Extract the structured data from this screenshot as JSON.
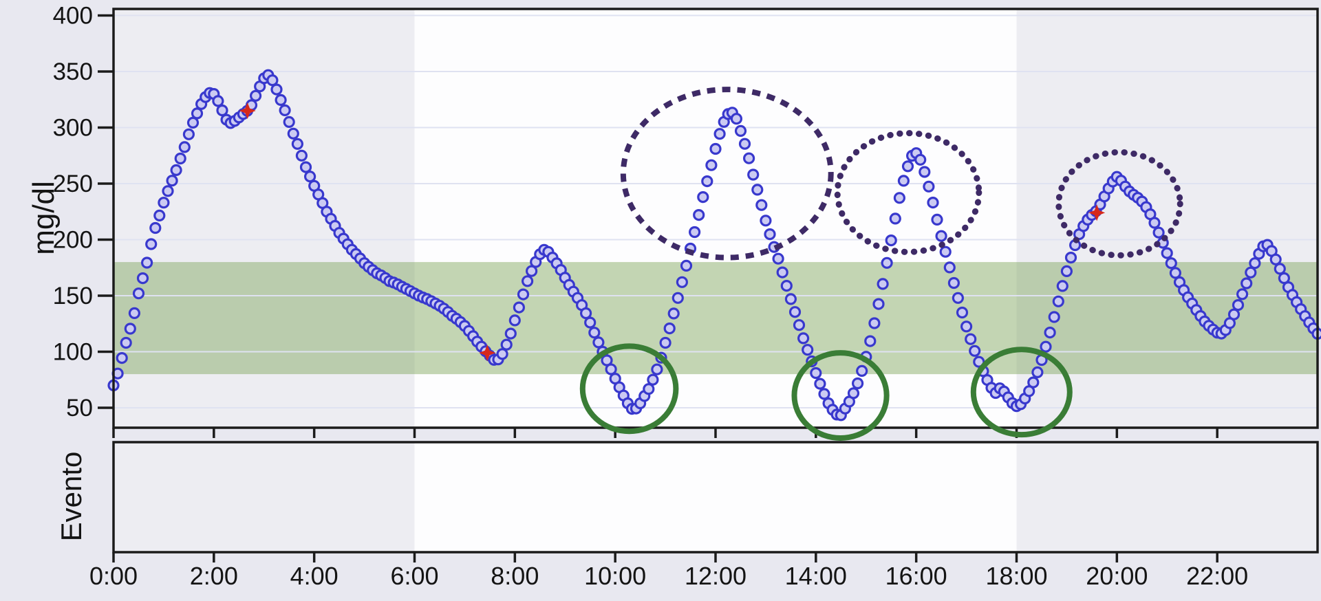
{
  "page": {
    "background_color": "#e8e8f0",
    "description_text": ""
  },
  "chart": {
    "y_axis": {
      "title": "mg/dl",
      "tick_labels": [
        "400",
        "350",
        "300",
        "250",
        "200",
        "150",
        "100",
        "50"
      ],
      "tick_values": [
        400,
        350,
        300,
        250,
        200,
        150,
        100,
        50
      ]
    },
    "x_axis": {
      "tick_labels": [
        "0:00",
        "2:00",
        "4:00",
        "6:00",
        "8:00",
        "10:00",
        "12:00",
        "14:00",
        "16:00",
        "18:00",
        "20:00",
        "22:00"
      ],
      "tick_hours": [
        0,
        2,
        4,
        6,
        8,
        10,
        12,
        14,
        16,
        18,
        20,
        22
      ],
      "hour_min": 0,
      "hour_max": 24
    },
    "event_panel": {
      "title": "Evento",
      "content": ""
    },
    "target_band": {
      "low_mgdl": 80,
      "high_mgdl": 180
    },
    "shaded_periods_hours": [
      [
        0,
        6
      ],
      [
        18,
        24
      ]
    ],
    "colors": {
      "margin_bg": "#e8e8f0",
      "plot_bg_day": "#fdfdfe",
      "plot_bg_night": "#ededf2",
      "gridline": "#dfe2f1",
      "border": "#1b1b1b",
      "tick": "#1b1b1b",
      "label_text": "#141414",
      "target_band": "rgba(124,163,88,0.45)",
      "dot_fill": "#cbcaf2",
      "dot_stroke": "#3838cd",
      "calibration_marker": "#d6281a",
      "hyper_annotation": "#3e2a66",
      "hypo_annotation": "#3a7d36"
    }
  },
  "chart_data": {
    "type": "scatter",
    "title": "",
    "ylabel": "mg/dl",
    "xlabel": "",
    "ylim": [
      32,
      405
    ],
    "xlim_hours": [
      0,
      24
    ],
    "grid": "horizontal",
    "legend": "none",
    "series": [
      {
        "name": "sensor-glucose",
        "marker": "circle",
        "sample_interval_min": 5,
        "keypoints_hour_mgdl": [
          [
            0,
            70
          ],
          [
            0.08,
            80
          ],
          [
            0.17,
            95
          ],
          [
            0.25,
            108
          ],
          [
            0.33,
            120
          ],
          [
            0.42,
            135
          ],
          [
            0.5,
            152
          ],
          [
            0.58,
            165
          ],
          [
            0.67,
            180
          ],
          [
            0.75,
            196
          ],
          [
            0.83,
            210
          ],
          [
            0.92,
            222
          ],
          [
            1,
            233
          ],
          [
            1.08,
            243
          ],
          [
            1.17,
            253
          ],
          [
            1.25,
            262
          ],
          [
            1.33,
            272
          ],
          [
            1.42,
            283
          ],
          [
            1.5,
            294
          ],
          [
            1.58,
            304
          ],
          [
            1.67,
            313
          ],
          [
            1.75,
            321
          ],
          [
            1.83,
            327
          ],
          [
            1.92,
            331
          ],
          [
            2,
            330
          ],
          [
            2.08,
            324
          ],
          [
            2.17,
            315
          ],
          [
            2.25,
            307
          ],
          [
            2.33,
            304
          ],
          [
            2.42,
            306
          ],
          [
            2.5,
            309
          ],
          [
            2.58,
            312
          ],
          [
            2.67,
            315
          ],
          [
            2.75,
            320
          ],
          [
            2.83,
            328
          ],
          [
            2.92,
            337
          ],
          [
            3,
            344
          ],
          [
            3.08,
            347
          ],
          [
            3.17,
            342
          ],
          [
            3.25,
            334
          ],
          [
            3.33,
            325
          ],
          [
            3.42,
            315
          ],
          [
            3.5,
            305
          ],
          [
            3.58,
            295
          ],
          [
            3.67,
            285
          ],
          [
            3.75,
            275
          ],
          [
            3.83,
            265
          ],
          [
            3.92,
            256
          ],
          [
            4,
            248
          ],
          [
            4.13,
            236
          ],
          [
            4.25,
            225
          ],
          [
            4.38,
            215
          ],
          [
            4.5,
            206
          ],
          [
            4.63,
            198
          ],
          [
            4.75,
            191
          ],
          [
            4.88,
            185
          ],
          [
            5,
            179
          ],
          [
            5.13,
            174
          ],
          [
            5.25,
            170
          ],
          [
            5.38,
            167
          ],
          [
            5.5,
            163
          ],
          [
            5.63,
            161
          ],
          [
            5.75,
            158
          ],
          [
            5.88,
            155
          ],
          [
            6,
            152
          ],
          [
            6.13,
            149
          ],
          [
            6.25,
            147
          ],
          [
            6.38,
            144
          ],
          [
            6.5,
            141
          ],
          [
            6.63,
            137
          ],
          [
            6.75,
            132
          ],
          [
            6.88,
            128
          ],
          [
            7,
            123
          ],
          [
            7.13,
            116
          ],
          [
            7.25,
            109
          ],
          [
            7.38,
            102
          ],
          [
            7.45,
            99
          ],
          [
            7.55,
            94
          ],
          [
            7.63,
            91
          ],
          [
            7.75,
            98
          ],
          [
            7.88,
            111
          ],
          [
            8,
            128
          ],
          [
            8.13,
            146
          ],
          [
            8.25,
            163
          ],
          [
            8.38,
            177
          ],
          [
            8.5,
            187
          ],
          [
            8.58,
            191
          ],
          [
            8.67,
            189
          ],
          [
            8.75,
            184
          ],
          [
            8.88,
            176
          ],
          [
            9,
            166
          ],
          [
            9.13,
            156
          ],
          [
            9.25,
            148
          ],
          [
            9.38,
            138
          ],
          [
            9.5,
            126
          ],
          [
            9.63,
            112
          ],
          [
            9.75,
            100
          ],
          [
            9.88,
            88
          ],
          [
            10,
            76
          ],
          [
            10.13,
            64
          ],
          [
            10.25,
            54
          ],
          [
            10.35,
            48
          ],
          [
            10.45,
            50
          ],
          [
            10.55,
            58
          ],
          [
            10.67,
            67
          ],
          [
            10.78,
            78
          ],
          [
            10.9,
            92
          ],
          [
            11,
            108
          ],
          [
            11.13,
            128
          ],
          [
            11.25,
            148
          ],
          [
            11.38,
            170
          ],
          [
            11.5,
            192
          ],
          [
            11.63,
            215
          ],
          [
            11.75,
            238
          ],
          [
            11.88,
            260
          ],
          [
            12,
            281
          ],
          [
            12.1,
            297
          ],
          [
            12.2,
            309
          ],
          [
            12.3,
            315
          ],
          [
            12.4,
            310
          ],
          [
            12.5,
            297
          ],
          [
            12.63,
            279
          ],
          [
            12.75,
            258
          ],
          [
            12.88,
            237
          ],
          [
            13,
            217
          ],
          [
            13.13,
            198
          ],
          [
            13.25,
            183
          ],
          [
            13.38,
            164
          ],
          [
            13.5,
            147
          ],
          [
            13.63,
            129
          ],
          [
            13.75,
            112
          ],
          [
            13.88,
            96
          ],
          [
            14,
            81
          ],
          [
            14.13,
            66
          ],
          [
            14.25,
            54
          ],
          [
            14.38,
            45
          ],
          [
            14.48,
            42
          ],
          [
            14.58,
            49
          ],
          [
            14.7,
            58
          ],
          [
            14.82,
            70
          ],
          [
            14.94,
            86
          ],
          [
            15.06,
            105
          ],
          [
            15.18,
            128
          ],
          [
            15.3,
            153
          ],
          [
            15.42,
            180
          ],
          [
            15.54,
            209
          ],
          [
            15.66,
            236
          ],
          [
            15.78,
            258
          ],
          [
            15.88,
            272
          ],
          [
            15.97,
            279
          ],
          [
            16.07,
            273
          ],
          [
            16.17,
            260
          ],
          [
            16.29,
            241
          ],
          [
            16.41,
            219
          ],
          [
            16.53,
            198
          ],
          [
            16.65,
            178
          ],
          [
            16.77,
            158
          ],
          [
            16.89,
            139
          ],
          [
            17.01,
            121
          ],
          [
            17.13,
            105
          ],
          [
            17.25,
            91
          ],
          [
            17.37,
            79
          ],
          [
            17.48,
            69
          ],
          [
            17.58,
            63
          ],
          [
            17.68,
            68
          ],
          [
            17.78,
            63
          ],
          [
            17.88,
            56
          ],
          [
            17.98,
            51
          ],
          [
            18.08,
            53
          ],
          [
            18.18,
            59
          ],
          [
            18.3,
            69
          ],
          [
            18.42,
            82
          ],
          [
            18.54,
            98
          ],
          [
            18.66,
            116
          ],
          [
            18.78,
            136
          ],
          [
            18.9,
            156
          ],
          [
            19.02,
            175
          ],
          [
            19.14,
            192
          ],
          [
            19.26,
            206
          ],
          [
            19.38,
            216
          ],
          [
            19.5,
            222
          ],
          [
            19.6,
            226
          ],
          [
            19.7,
            234
          ],
          [
            19.8,
            243
          ],
          [
            19.9,
            251
          ],
          [
            20,
            256
          ],
          [
            20.1,
            252
          ],
          [
            20.2,
            245
          ],
          [
            20.3,
            241
          ],
          [
            20.4,
            238
          ],
          [
            20.5,
            234
          ],
          [
            20.6,
            228
          ],
          [
            20.7,
            220
          ],
          [
            20.8,
            210
          ],
          [
            20.9,
            199
          ],
          [
            21,
            188
          ],
          [
            21.13,
            174
          ],
          [
            21.25,
            162
          ],
          [
            21.38,
            151
          ],
          [
            21.5,
            143
          ],
          [
            21.63,
            134
          ],
          [
            21.75,
            127
          ],
          [
            21.88,
            121
          ],
          [
            22,
            117
          ],
          [
            22.1,
            116
          ],
          [
            22.2,
            121
          ],
          [
            22.3,
            130
          ],
          [
            22.42,
            142
          ],
          [
            22.54,
            156
          ],
          [
            22.66,
            170
          ],
          [
            22.78,
            182
          ],
          [
            22.88,
            192
          ],
          [
            22.97,
            197
          ],
          [
            23.06,
            192
          ],
          [
            23.16,
            183
          ],
          [
            23.28,
            171
          ],
          [
            23.4,
            159
          ],
          [
            23.52,
            149
          ],
          [
            23.64,
            140
          ],
          [
            23.76,
            131
          ],
          [
            23.88,
            123
          ],
          [
            24,
            116
          ]
        ]
      }
    ],
    "calibration_points_hour_mgdl": [
      [
        2.67,
        315
      ],
      [
        7.45,
        99
      ],
      [
        19.6,
        224
      ]
    ],
    "annotations": {
      "hyperglycemia_ellipses": [
        {
          "center_hour": 12.23,
          "center_value": 259,
          "rx_hours": 2.07,
          "ry_value": 75,
          "style": "dashed"
        },
        {
          "center_hour": 15.84,
          "center_value": 242,
          "rx_hours": 1.41,
          "ry_value": 53,
          "style": "dotted"
        },
        {
          "center_hour": 20.05,
          "center_value": 232,
          "rx_hours": 1.21,
          "ry_value": 46,
          "style": "dotted"
        }
      ],
      "hypoglycemia_circles": [
        {
          "center_hour": 10.28,
          "center_value": 67,
          "rx_hours": 0.93,
          "ry_value": 38
        },
        {
          "center_hour": 14.49,
          "center_value": 61,
          "rx_hours": 0.92,
          "ry_value": 38
        },
        {
          "center_hour": 18.1,
          "center_value": 64,
          "rx_hours": 0.96,
          "ry_value": 38
        }
      ]
    }
  }
}
